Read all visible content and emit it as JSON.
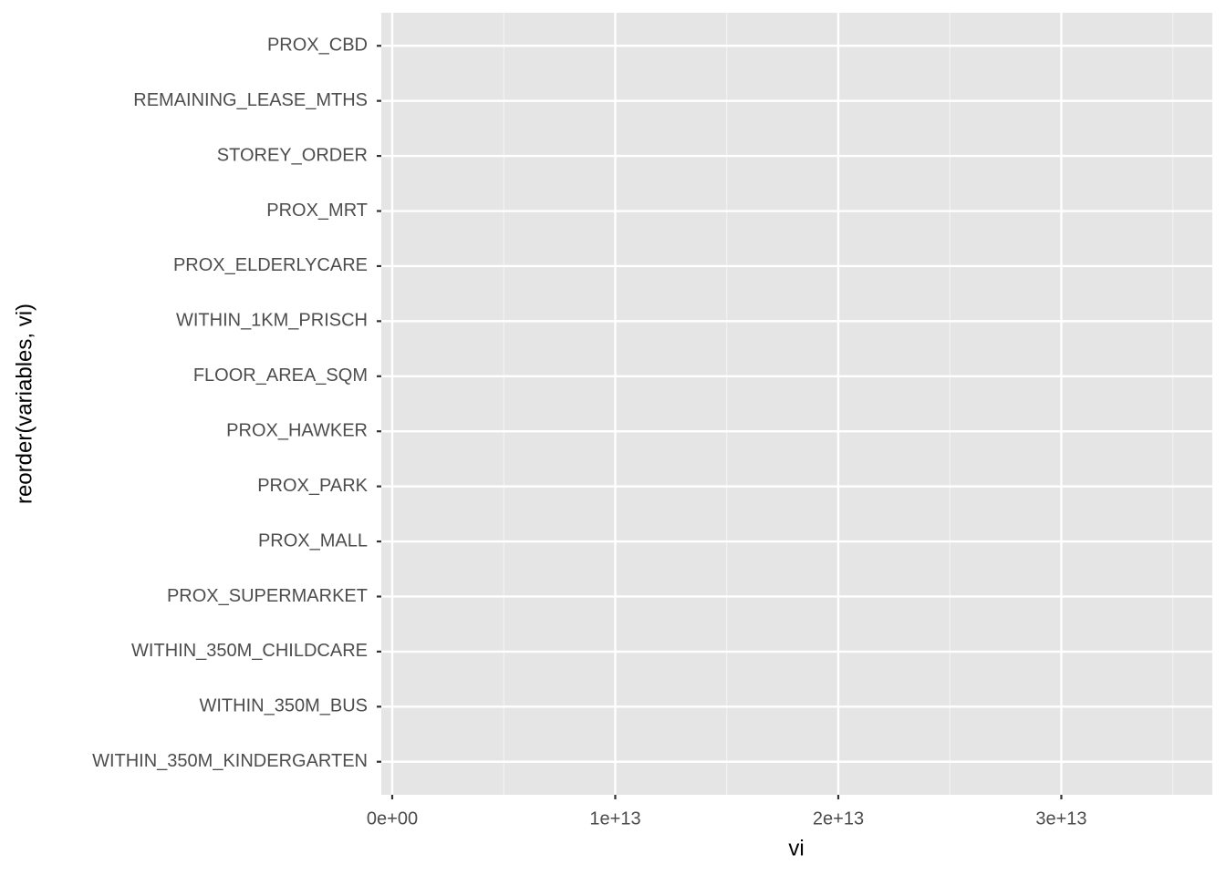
{
  "chart_data": {
    "type": "bar",
    "x_label": "vi",
    "y_label": "reorder(variables, vi)",
    "categories": [
      "PROX_CBD",
      "REMAINING_LEASE_MTHS",
      "STOREY_ORDER",
      "PROX_MRT",
      "PROX_ELDERLYCARE",
      "WITHIN_1KM_PRISCH",
      "FLOOR_AREA_SQM",
      "PROX_HAWKER",
      "PROX_PARK",
      "PROX_MALL",
      "PROX_SUPERMARKET",
      "WITHIN_350M_CHILDCARE",
      "WITHIN_350M_BUS",
      "WITHIN_350M_KINDERGARTEN"
    ],
    "xlim": [
      -490000000000,
      36770000000000
    ],
    "xticks": [
      {
        "value": 0,
        "label": "0e+00"
      },
      {
        "value": 10000000000000,
        "label": "1e+13"
      },
      {
        "value": 20000000000000,
        "label": "2e+13"
      },
      {
        "value": 30000000000000,
        "label": "3e+13"
      }
    ],
    "grid": true
  }
}
